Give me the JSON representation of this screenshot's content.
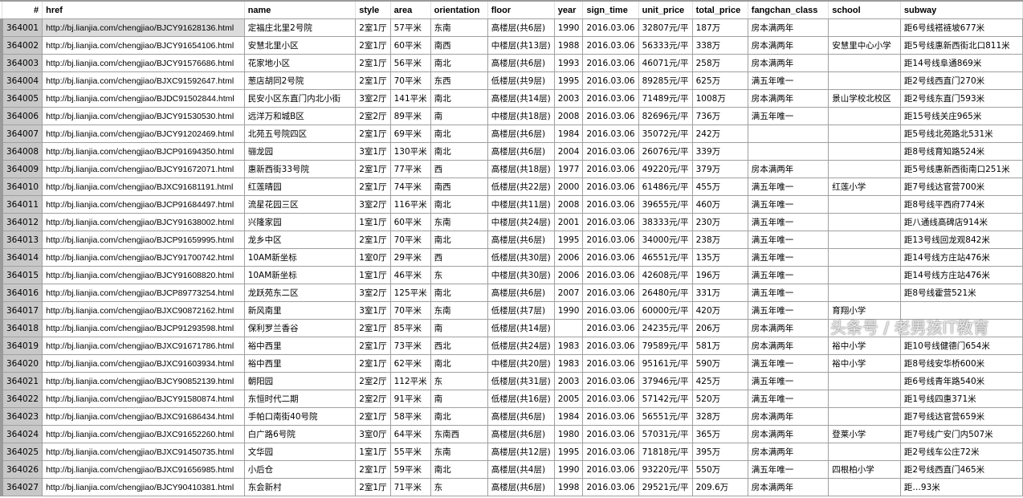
{
  "columns": [
    "#",
    "href",
    "name",
    "style",
    "area",
    "orientation",
    "floor",
    "year",
    "sign_time",
    "unit_price",
    "total_price",
    "fangchan_class",
    "school",
    "subway"
  ],
  "selected_cell": {
    "row": 0,
    "column": "href"
  },
  "rows": [
    [
      "364001",
      "http://bj.lianjia.com/chengjiao/BJCY91628136.html",
      "定福庄北里2号院",
      "2室1厅",
      "57平米",
      "东南",
      "高楼层(共6层)",
      "1990",
      "2016.03.06",
      "32807元/平",
      "187万",
      "房本满两年",
      "",
      "距6号线褡裢坡677米"
    ],
    [
      "364002",
      "http://bj.lianjia.com/chengjiao/BJCY91654106.html",
      "安慧北里小区",
      "2室1厅",
      "60平米",
      "南西",
      "中楼层(共13层)",
      "1988",
      "2016.03.06",
      "56333元/平",
      "338万",
      "房本满两年",
      "安慧里中心小学",
      "距5号线惠新西街北口811米"
    ],
    [
      "364003",
      "http://bj.lianjia.com/chengjiao/BJCY91576686.html",
      "花家地小区",
      "2室1厅",
      "56平米",
      "南北",
      "高楼层(共6层)",
      "1993",
      "2016.03.06",
      "46071元/平",
      "258万",
      "房本满两年",
      "",
      "距14号线阜通869米"
    ],
    [
      "364004",
      "http://bj.lianjia.com/chengjiao/BJXC91592647.html",
      "葱店胡同2号院",
      "2室1厅",
      "70平米",
      "东西",
      "低楼层(共9层)",
      "1995",
      "2016.03.06",
      "89285元/平",
      "625万",
      "满五年唯一",
      "",
      "距2号线西直门270米"
    ],
    [
      "364005",
      "http://bj.lianjia.com/chengjiao/BJDC91502844.html",
      "民安小区东直门内北小街",
      "3室2厅",
      "141平米",
      "南北",
      "高楼层(共14层)",
      "2003",
      "2016.03.06",
      "71489元/平",
      "1008万",
      "房本满两年",
      "景山学校北校区",
      "距2号线东直门593米"
    ],
    [
      "364006",
      "http://bj.lianjia.com/chengjiao/BJCY91530530.html",
      "远洋万和城B区",
      "2室2厅",
      "89平米",
      "南",
      "中楼层(共18层)",
      "2008",
      "2016.03.06",
      "82696元/平",
      "736万",
      "满五年唯一",
      "",
      "距15号线关庄965米"
    ],
    [
      "364007",
      "http://bj.lianjia.com/chengjiao/BJCY91202469.html",
      "北苑五号院四区",
      "2室1厅",
      "69平米",
      "南北",
      "高楼层(共6层)",
      "1984",
      "2016.03.06",
      "35072元/平",
      "242万",
      "",
      "",
      "距5号线北苑路北531米"
    ],
    [
      "364008",
      "http://bj.lianjia.com/chengjiao/BJCP91694350.html",
      "骊龙园",
      "3室1厅",
      "130平米",
      "南北",
      "高楼层(共6层)",
      "2004",
      "2016.03.06",
      "26076元/平",
      "339万",
      "",
      "",
      "距8号线育知路524米"
    ],
    [
      "364009",
      "http://bj.lianjia.com/chengjiao/BJCY91672071.html",
      "惠新西街33号院",
      "2室1厅",
      "77平米",
      "西",
      "高楼层(共18层)",
      "1977",
      "2016.03.06",
      "49220元/平",
      "379万",
      "房本满两年",
      "",
      "距5号线惠新西街南口251米"
    ],
    [
      "364010",
      "http://bj.lianjia.com/chengjiao/BJXC91681191.html",
      "红莲晴园",
      "2室1厅",
      "74平米",
      "南西",
      "低楼层(共22层)",
      "2000",
      "2016.03.06",
      "61486元/平",
      "455万",
      "满五年唯一",
      "红莲小学",
      "距7号线达官营700米"
    ],
    [
      "364011",
      "http://bj.lianjia.com/chengjiao/BJCP91684497.html",
      "流星花园三区",
      "3室2厅",
      "116平米",
      "南北",
      "中楼层(共11层)",
      "2008",
      "2016.03.06",
      "39655元/平",
      "460万",
      "满五年唯一",
      "",
      "距8号线平西府774米"
    ],
    [
      "364012",
      "http://bj.lianjia.com/chengjiao/BJCY91638002.html",
      "兴隆家园",
      "1室1厅",
      "60平米",
      "东南",
      "中楼层(共24层)",
      "2001",
      "2016.03.06",
      "38333元/平",
      "230万",
      "满五年唯一",
      "",
      "距八通线高碑店914米"
    ],
    [
      "364013",
      "http://bj.lianjia.com/chengjiao/BJCP91659995.html",
      "龙乡中区",
      "2室1厅",
      "70平米",
      "南北",
      "高楼层(共6层)",
      "1995",
      "2016.03.06",
      "34000元/平",
      "238万",
      "满五年唯一",
      "",
      "距13号线回龙观842米"
    ],
    [
      "364014",
      "http://bj.lianjia.com/chengjiao/BJCY91700742.html",
      "10AM新坐标",
      "1室0厅",
      "29平米",
      "西",
      "低楼层(共30层)",
      "2006",
      "2016.03.06",
      "46551元/平",
      "135万",
      "满五年唯一",
      "",
      "距14号线方庄站476米"
    ],
    [
      "364015",
      "http://bj.lianjia.com/chengjiao/BJCY91608820.html",
      "10AM新坐标",
      "1室1厅",
      "46平米",
      "东",
      "中楼层(共30层)",
      "2006",
      "2016.03.06",
      "42608元/平",
      "196万",
      "满五年唯一",
      "",
      "距14号线方庄站476米"
    ],
    [
      "364016",
      "http://bj.lianjia.com/chengjiao/BJCP89773254.html",
      "龙跃苑东二区",
      "3室2厅",
      "125平米",
      "南北",
      "高楼层(共6层)",
      "2007",
      "2016.03.06",
      "26480元/平",
      "331万",
      "满五年唯一",
      "",
      "距8号线霍营521米"
    ],
    [
      "364017",
      "http://bj.lianjia.com/chengjiao/BJXC90872162.html",
      "新风南里",
      "3室1厅",
      "70平米",
      "东南",
      "低楼层(共7层)",
      "1990",
      "2016.03.06",
      "60000元/平",
      "420万",
      "满五年唯一",
      "育翔小学",
      ""
    ],
    [
      "364018",
      "http://bj.lianjia.com/chengjiao/BJCP91293598.html",
      "保利罗兰香谷",
      "2室1厅",
      "85平米",
      "南",
      "低楼层(共14层)",
      "",
      "2016.03.06",
      "24235元/平",
      "206万",
      "房本满两年",
      "",
      ""
    ],
    [
      "364019",
      "http://bj.lianjia.com/chengjiao/BJXC91671786.html",
      "裕中西里",
      "2室1厅",
      "73平米",
      "西北",
      "低楼层(共24层)",
      "1983",
      "2016.03.06",
      "79589元/平",
      "581万",
      "房本满两年",
      "裕中小学",
      "距10号线健德门654米"
    ],
    [
      "364020",
      "http://bj.lianjia.com/chengjiao/BJXC91603934.html",
      "裕中西里",
      "2室1厅",
      "62平米",
      "南北",
      "中楼层(共20层)",
      "1983",
      "2016.03.06",
      "95161元/平",
      "590万",
      "满五年唯一",
      "裕中小学",
      "距8号线安华桥600米"
    ],
    [
      "364021",
      "http://bj.lianjia.com/chengjiao/BJCY90852139.html",
      "朝阳园",
      "2室2厅",
      "112平米",
      "东",
      "低楼层(共31层)",
      "2003",
      "2016.03.06",
      "37946元/平",
      "425万",
      "满五年唯一",
      "",
      "距6号线青年路540米"
    ],
    [
      "364022",
      "http://bj.lianjia.com/chengjiao/BJCY91580874.html",
      "东恒时代二期",
      "2室2厅",
      "91平米",
      "南",
      "低楼层(共16层)",
      "2005",
      "2016.03.06",
      "57142元/平",
      "520万",
      "满五年唯一",
      "",
      "距1号线四惠371米"
    ],
    [
      "364023",
      "http://bj.lianjia.com/chengjiao/BJXC91686434.html",
      "手帕口南街40号院",
      "2室1厅",
      "58平米",
      "南北",
      "高楼层(共6层)",
      "1984",
      "2016.03.06",
      "56551元/平",
      "328万",
      "房本满两年",
      "",
      "距7号线达官营659米"
    ],
    [
      "364024",
      "http://bj.lianjia.com/chengjiao/BJXC91652260.html",
      "白广路6号院",
      "3室0厅",
      "64平米",
      "东南西",
      "高楼层(共6层)",
      "1980",
      "2016.03.06",
      "57031元/平",
      "365万",
      "房本满两年",
      "登莱小学",
      "距7号线广安门内507米"
    ],
    [
      "364025",
      "http://bj.lianjia.com/chengjiao/BJXC91450735.html",
      "文华园",
      "1室1厅",
      "55平米",
      "东南",
      "高楼层(共12层)",
      "1995",
      "2016.03.06",
      "71818元/平",
      "395万",
      "房本满两年",
      "",
      "距2号线车公庄72米"
    ],
    [
      "364026",
      "http://bj.lianjia.com/chengjiao/BJXC91656985.html",
      "小后仓",
      "2室1厅",
      "59平米",
      "南北",
      "高楼层(共4层)",
      "1990",
      "2016.03.06",
      "93220元/平",
      "550万",
      "满五年唯一",
      "四根柏小学",
      "距2号线西直门465米"
    ],
    [
      "364027",
      "http://bj.lianjia.com/chengjiao/BJCY90410381.html",
      "东会新村",
      "2室1厅",
      "71平米",
      "东",
      "高楼层(共6层)",
      "1998",
      "2016.03.06",
      "29521元/平",
      "209.6万",
      "房本满两年",
      "",
      "距…93米"
    ]
  ],
  "watermark": "头条号 / 老男孩IT教育"
}
